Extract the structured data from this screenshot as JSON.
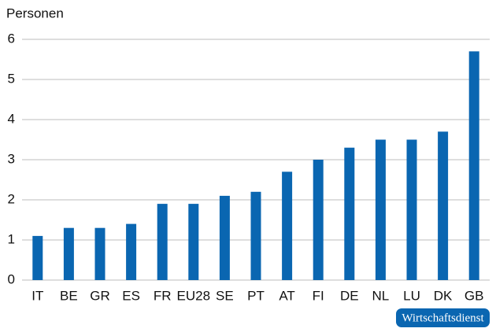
{
  "chart_data": {
    "type": "bar",
    "y_label": "Personen",
    "categories": [
      "IT",
      "BE",
      "GR",
      "ES",
      "FR",
      "EU28",
      "SE",
      "PT",
      "AT",
      "FI",
      "DE",
      "NL",
      "LU",
      "DK",
      "GB"
    ],
    "values": [
      1.1,
      1.3,
      1.3,
      1.4,
      1.9,
      1.9,
      2.1,
      2.2,
      2.7,
      3.0,
      3.3,
      3.5,
      3.5,
      3.7,
      5.7
    ],
    "color": "#0a66b1",
    "ylim": [
      0,
      6
    ],
    "yticks": [
      0,
      1,
      2,
      3,
      4,
      5,
      6
    ],
    "grid": true,
    "source": "Wirtschaftsdienst"
  }
}
